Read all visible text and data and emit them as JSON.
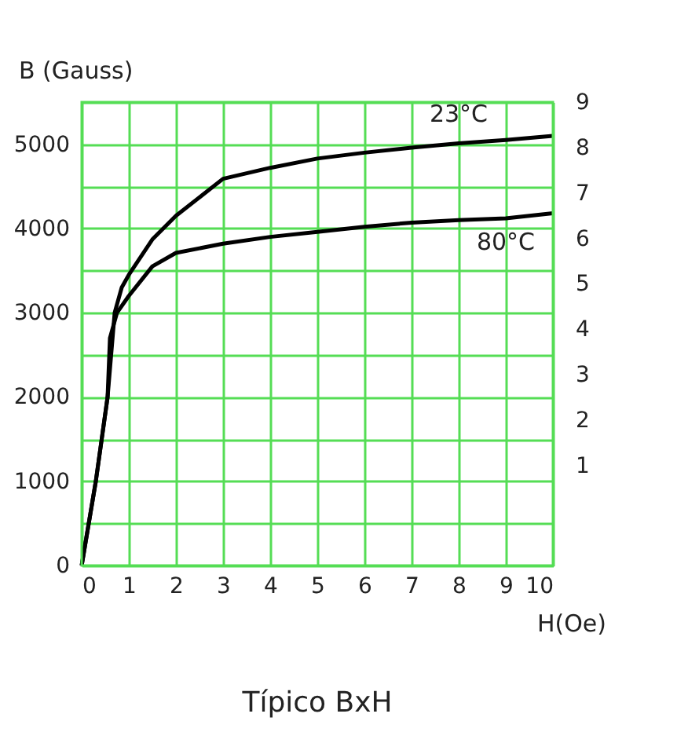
{
  "chart_data": {
    "type": "line",
    "title": "Típico BxH",
    "xlabel": "H(Oe)",
    "ylabel": "B (Gauss)",
    "series": [
      {
        "name": "23°C",
        "x": [
          0,
          0.3,
          0.55,
          0.7,
          0.85,
          1,
          1.5,
          2,
          3,
          4,
          5,
          6,
          7,
          8,
          9,
          10
        ],
        "values": [
          0,
          1000,
          2000,
          3000,
          3300,
          3450,
          3870,
          4150,
          4590,
          4720,
          4830,
          4900,
          4960,
          5010,
          5050,
          5100
        ],
        "color": "#000000"
      },
      {
        "name": "80°C",
        "x": [
          0,
          0.3,
          0.55,
          0.6,
          0.75,
          1,
          1.5,
          2,
          3,
          4,
          5,
          6,
          7,
          8,
          9,
          10
        ],
        "values": [
          0,
          1000,
          2000,
          2700,
          3000,
          3200,
          3550,
          3710,
          3820,
          3900,
          3960,
          4020,
          4070,
          4100,
          4120,
          4180
        ],
        "color": "#000000"
      }
    ],
    "xlim": [
      0,
      10
    ],
    "xticks": [
      0,
      1,
      2,
      3,
      4,
      5,
      6,
      7,
      8,
      9,
      10
    ],
    "ylim": [
      0,
      5500
    ],
    "yticks": [
      {
        "value": 0,
        "label": "0"
      },
      {
        "value": 500,
        "label": null
      },
      {
        "value": 1000,
        "label": "1000"
      },
      {
        "value": 1500,
        "label": null
      },
      {
        "value": 2000,
        "label": "2000"
      },
      {
        "value": 2500,
        "label": null
      },
      {
        "value": 3000,
        "label": "3000"
      },
      {
        "value": 3500,
        "label": null
      },
      {
        "value": 4000,
        "label": "4000"
      },
      {
        "value": 4500,
        "label": null
      },
      {
        "value": 5000,
        "label": "5000"
      },
      {
        "value": 5500,
        "label": null
      }
    ],
    "y2lim": [
      -1.2,
      9
    ],
    "y2ticks": [
      1,
      2,
      3,
      4,
      5,
      6,
      7,
      8,
      9
    ],
    "grid": true,
    "legend": false,
    "marker": "none",
    "line_style": "solid"
  }
}
